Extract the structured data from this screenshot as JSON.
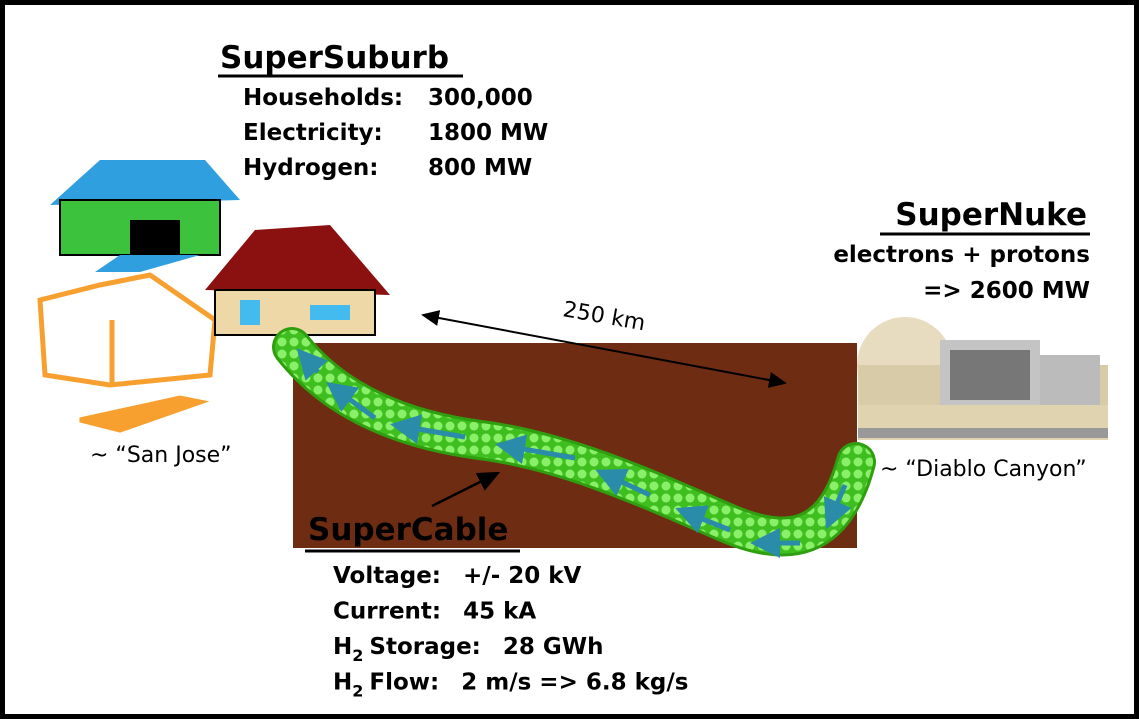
{
  "supersuburb": {
    "title": "SuperSuburb",
    "rows": [
      {
        "label": "Households:",
        "value": "300,000"
      },
      {
        "label": "Electricity:",
        "value": "1800 MW"
      },
      {
        "label": "Hydrogen:",
        "value": "800 MW"
      }
    ]
  },
  "supernuke": {
    "title": "SuperNuke",
    "lines": [
      "electrons + protons",
      "=> 2600 MW"
    ]
  },
  "distance": "250 km",
  "places": {
    "left": "~ “San Jose”",
    "right": "~ “Diablo Canyon”"
  },
  "supercable": {
    "title": "SuperCable",
    "rows": [
      {
        "label": "Voltage:",
        "value": "+/- 20 kV"
      },
      {
        "label": "Current:",
        "value": "45 kA"
      },
      {
        "label": "H",
        "sub": "2",
        "rest": "Storage:",
        "value": "28 GWh"
      },
      {
        "label": "H",
        "sub": "2",
        "rest": "Flow:",
        "value": "2 m/s => 6.8 kg/s"
      }
    ]
  }
}
